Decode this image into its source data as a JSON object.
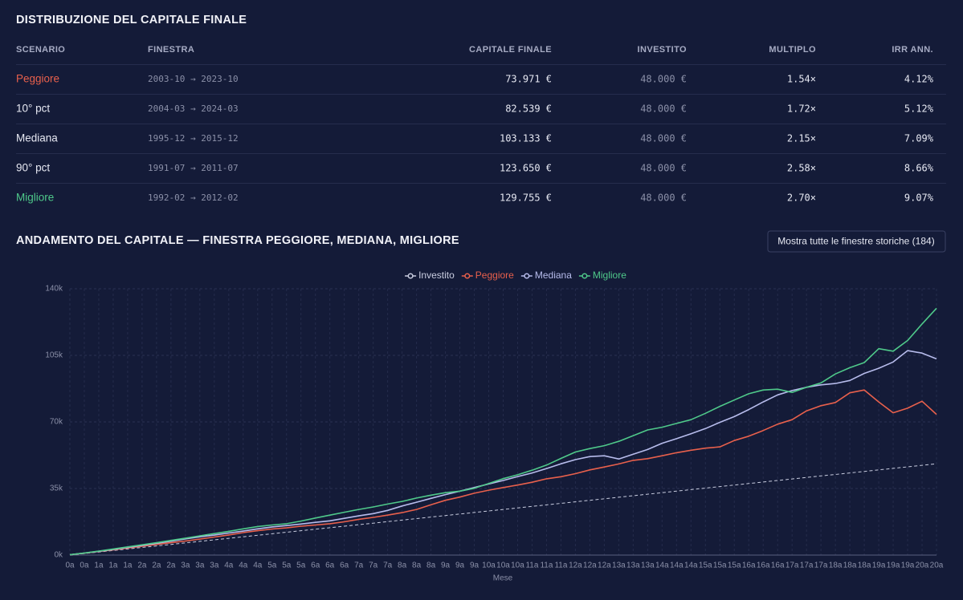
{
  "header": {
    "title": "DISTRIBUZIONE DEL CAPITALE FINALE"
  },
  "table": {
    "columns": [
      "SCENARIO",
      "FINESTRA",
      "CAPITALE FINALE",
      "INVESTITO",
      "MULTIPLO",
      "IRR ANN."
    ],
    "rows": [
      [
        "Peggiore",
        "2003-10 → 2023-10",
        "73.971 €",
        "48.000 €",
        "1.54×",
        "4.12%"
      ],
      [
        "10° pct",
        "2004-03 → 2024-03",
        "82.539 €",
        "48.000 €",
        "1.72×",
        "5.12%"
      ],
      [
        "Mediana",
        "1995-12 → 2015-12",
        "103.133 €",
        "48.000 €",
        "2.15×",
        "7.09%"
      ],
      [
        "90° pct",
        "1991-07 → 2011-07",
        "123.650 €",
        "48.000 €",
        "2.58×",
        "8.66%"
      ],
      [
        "Migliore",
        "1992-02 → 2012-02",
        "129.755 €",
        "48.000 €",
        "2.70×",
        "9.07%"
      ]
    ]
  },
  "button": {
    "label": "Mostra tutte le finestre storiche (184)"
  },
  "chart_data": {
    "type": "line",
    "title": "ANDAMENTO DEL CAPITALE — FINESTRA PEGGIORE, MEDIANA, MIGLIORE",
    "x_label": "Mese",
    "categories": [
      "0a",
      "0a",
      "1a",
      "1a",
      "1a",
      "2a",
      "2a",
      "2a",
      "3a",
      "3a",
      "3a",
      "4a",
      "4a",
      "4a",
      "5a",
      "5a",
      "5a",
      "6a",
      "6a",
      "6a",
      "7a",
      "7a",
      "7a",
      "8a",
      "8a",
      "8a",
      "9a",
      "9a",
      "9a",
      "10a",
      "10a",
      "10a",
      "11a",
      "11a",
      "11a",
      "12a",
      "12a",
      "12a",
      "13a",
      "13a",
      "13a",
      "14a",
      "14a",
      "14a",
      "15a",
      "15a",
      "15a",
      "16a",
      "16a",
      "16a",
      "17a",
      "17a",
      "17a",
      "18a",
      "18a",
      "18a",
      "19a",
      "19a",
      "19a",
      "20a",
      "20a"
    ],
    "series": [
      {
        "name": "Investito",
        "color": "#c9cde0",
        "line_style": "dashed",
        "values": [
          0,
          800,
          1600,
          2400,
          3200,
          4000,
          4800,
          5600,
          6400,
          7200,
          8000,
          8800,
          9600,
          10400,
          11200,
          12000,
          12800,
          13600,
          14400,
          15200,
          16000,
          16800,
          17600,
          18400,
          19200,
          20000,
          20800,
          21600,
          22400,
          23200,
          24000,
          24800,
          25600,
          26400,
          27200,
          28000,
          28800,
          29600,
          30400,
          31200,
          32000,
          32800,
          33600,
          34400,
          35200,
          36000,
          36800,
          37600,
          38400,
          39200,
          40000,
          40800,
          41600,
          42400,
          43200,
          44000,
          44800,
          45600,
          46400,
          47200,
          48000
        ]
      },
      {
        "name": "Peggiore",
        "color": "#e8604c",
        "line_style": "solid",
        "values": [
          200,
          1000,
          1900,
          2800,
          3700,
          4700,
          5600,
          6500,
          7400,
          8400,
          9500,
          10600,
          11800,
          12800,
          13700,
          14300,
          15200,
          15800,
          16500,
          17500,
          18800,
          19800,
          21000,
          22300,
          24000,
          26500,
          28800,
          30500,
          32500,
          34100,
          35500,
          36800,
          38300,
          40100,
          41200,
          42800,
          44800,
          46300,
          47900,
          49800,
          50700,
          52200,
          53800,
          55100,
          56200,
          56900,
          60200,
          62500,
          65500,
          68800,
          71200,
          75800,
          78500,
          80200,
          85300,
          86800,
          80500,
          74800,
          77200,
          80900,
          73971
        ]
      },
      {
        "name": "Mediana",
        "color": "#b7bcec",
        "line_style": "solid",
        "values": [
          200,
          1050,
          2000,
          2950,
          4000,
          5100,
          6200,
          7300,
          8500,
          9600,
          10500,
          11600,
          12600,
          13800,
          14800,
          15500,
          16300,
          17200,
          18000,
          19300,
          20600,
          21800,
          23500,
          25800,
          27800,
          29800,
          31800,
          33600,
          35500,
          37400,
          39200,
          41300,
          43200,
          45500,
          48000,
          50200,
          51800,
          52200,
          50500,
          53000,
          55500,
          58800,
          61200,
          63800,
          66500,
          69800,
          72800,
          76500,
          80500,
          84200,
          86500,
          88200,
          89500,
          90200,
          91800,
          95500,
          98200,
          101500,
          107500,
          106200,
          103133
        ]
      },
      {
        "name": "Migliore",
        "color": "#4fc98a",
        "line_style": "solid",
        "values": [
          200,
          1100,
          2100,
          3200,
          4300,
          5400,
          6500,
          7700,
          8900,
          10100,
          11300,
          12500,
          13800,
          15000,
          15800,
          16500,
          17900,
          19500,
          21000,
          22500,
          24000,
          25300,
          26800,
          28200,
          30000,
          31500,
          32800,
          33600,
          35100,
          37600,
          40200,
          42200,
          44600,
          47300,
          50800,
          54200,
          56000,
          57500,
          59800,
          62800,
          65800,
          67200,
          69200,
          71200,
          74500,
          78200,
          81500,
          84800,
          86800,
          87200,
          85500,
          88200,
          90500,
          95200,
          98500,
          101200,
          108500,
          107200,
          112800,
          121500,
          129755
        ]
      }
    ],
    "ylim": [
      0,
      140000
    ],
    "yticks": [
      {
        "value": 0,
        "label": "0k"
      },
      {
        "value": 35000,
        "label": "35k"
      },
      {
        "value": 70000,
        "label": "70k"
      },
      {
        "value": 105000,
        "label": "105k"
      },
      {
        "value": 140000,
        "label": "140k"
      }
    ],
    "grid": true,
    "legend": "top"
  }
}
